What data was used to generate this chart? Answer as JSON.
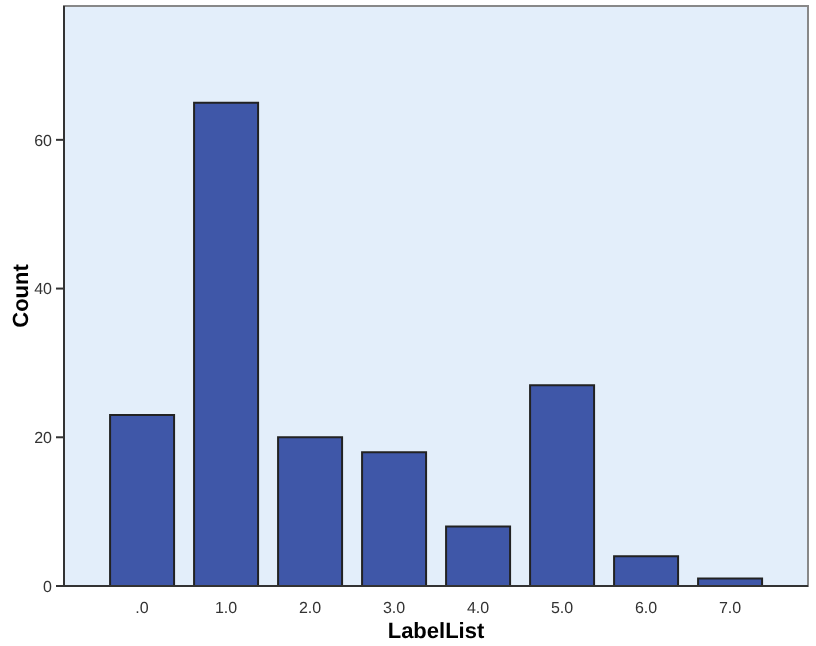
{
  "chart_data": {
    "type": "bar",
    "xlabel": "LabelList",
    "ylabel": "Count",
    "categories": [
      ".0",
      "1.0",
      "2.0",
      "3.0",
      "4.0",
      "5.0",
      "6.0",
      "7.0"
    ],
    "values": [
      23,
      65,
      20,
      18,
      8,
      27,
      4,
      1
    ],
    "color": "#3f57a8",
    "ylim": [
      0,
      78
    ],
    "yticks": [
      0,
      20,
      40,
      60
    ],
    "legend": false
  }
}
